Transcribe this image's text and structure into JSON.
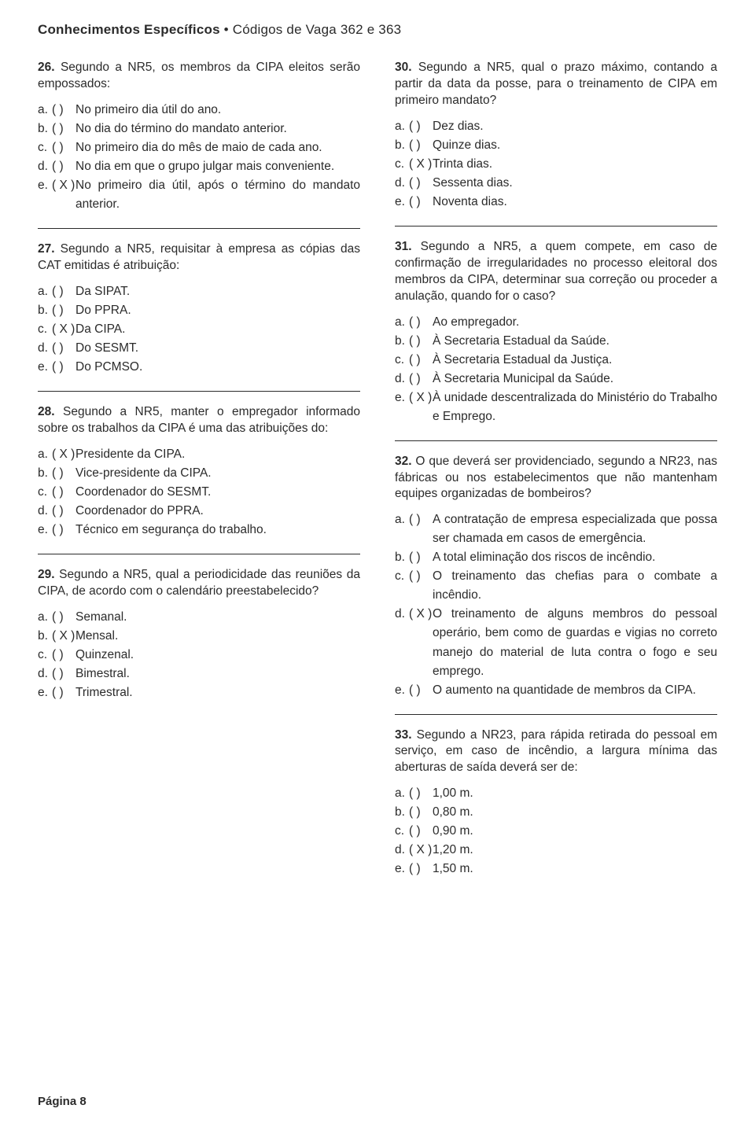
{
  "header": {
    "strong": "Conhecimentos Específicos",
    "light": " • Códigos de Vaga 362 e 363"
  },
  "footer": "Página 8",
  "left": [
    {
      "n": "26.",
      "text": " Segundo a NR5, os membros da CIPA eleitos serão empossados:",
      "opts": [
        {
          "l": "a.",
          "m": "(    )",
          "t": "No primeiro dia útil do ano."
        },
        {
          "l": "b.",
          "m": "(    )",
          "t": "No dia do término do mandato anterior."
        },
        {
          "l": "c.",
          "m": "(    )",
          "t": "No primeiro dia do mês de maio de cada ano."
        },
        {
          "l": "d.",
          "m": "(    )",
          "t": "No dia em que o grupo julgar mais conveniente."
        },
        {
          "l": "e.",
          "m": "( X )",
          "t": "No primeiro dia útil, após o término do mandato anterior."
        }
      ]
    },
    {
      "n": "27.",
      "text": " Segundo a NR5, requisitar à empresa as cópias das CAT emitidas é atribuição:",
      "opts": [
        {
          "l": "a.",
          "m": "(    )",
          "t": "Da SIPAT."
        },
        {
          "l": "b.",
          "m": "(    )",
          "t": "Do PPRA."
        },
        {
          "l": "c.",
          "m": "( X )",
          "t": "Da CIPA."
        },
        {
          "l": "d.",
          "m": "(    )",
          "t": "Do SESMT."
        },
        {
          "l": "e.",
          "m": "(    )",
          "t": "Do PCMSO."
        }
      ]
    },
    {
      "n": "28.",
      "text": " Segundo a NR5, manter o empregador informado sobre os trabalhos da CIPA é uma das atribuições do:",
      "opts": [
        {
          "l": "a.",
          "m": "( X )",
          "t": "Presidente da CIPA."
        },
        {
          "l": "b.",
          "m": "(    )",
          "t": "Vice-presidente da CIPA."
        },
        {
          "l": "c.",
          "m": "(    )",
          "t": "Coordenador do SESMT."
        },
        {
          "l": "d.",
          "m": "(    )",
          "t": "Coordenador do PPRA."
        },
        {
          "l": "e.",
          "m": "(    )",
          "t": "Técnico em segurança do trabalho."
        }
      ]
    },
    {
      "n": "29.",
      "text": " Segundo a NR5, qual a periodicidade das reuniões da CIPA, de acordo com o calendário preestabelecido?",
      "opts": [
        {
          "l": "a.",
          "m": "(    )",
          "t": "Semanal."
        },
        {
          "l": "b.",
          "m": "( X )",
          "t": "Mensal."
        },
        {
          "l": "c.",
          "m": "(    )",
          "t": "Quinzenal."
        },
        {
          "l": "d.",
          "m": "(    )",
          "t": "Bimestral."
        },
        {
          "l": "e.",
          "m": "(    )",
          "t": "Trimestral."
        }
      ]
    }
  ],
  "right": [
    {
      "n": "30.",
      "text": " Segundo a NR5, qual o prazo máximo, contando a partir da data da posse, para o treinamento de CIPA em primeiro mandato?",
      "opts": [
        {
          "l": "a.",
          "m": "(    )",
          "t": "Dez dias."
        },
        {
          "l": "b.",
          "m": "(    )",
          "t": "Quinze dias."
        },
        {
          "l": "c.",
          "m": "( X )",
          "t": "Trinta dias."
        },
        {
          "l": "d.",
          "m": "(    )",
          "t": "Sessenta dias."
        },
        {
          "l": "e.",
          "m": "(    )",
          "t": "Noventa dias."
        }
      ]
    },
    {
      "n": "31.",
      "text": " Segundo a NR5, a quem compete, em caso de confirmação de irregularidades no processo eleitoral dos membros da CIPA, determinar sua correção ou proceder a anulação, quando for o caso?",
      "opts": [
        {
          "l": "a.",
          "m": "(    )",
          "t": "Ao empregador."
        },
        {
          "l": "b.",
          "m": "(    )",
          "t": "À Secretaria Estadual da Saúde."
        },
        {
          "l": "c.",
          "m": "(    )",
          "t": "À Secretaria Estadual da Justiça."
        },
        {
          "l": "d.",
          "m": "(    )",
          "t": "À Secretaria Municipal da Saúde."
        },
        {
          "l": "e.",
          "m": "( X )",
          "t": "À unidade descentralizada do Ministério do Trabalho e Emprego."
        }
      ]
    },
    {
      "n": "32.",
      "text": " O que deverá ser providenciado, segundo a NR23, nas fábricas ou nos estabelecimentos que não mantenham equipes organizadas de bombeiros?",
      "opts": [
        {
          "l": "a.",
          "m": "(    )",
          "t": "A contratação de empresa especializada que possa ser chamada em casos de emergência."
        },
        {
          "l": "b.",
          "m": "(    )",
          "t": "A total eliminação dos riscos de incêndio."
        },
        {
          "l": "c.",
          "m": "(    )",
          "t": "O treinamento das chefias para o combate a incêndio."
        },
        {
          "l": "d.",
          "m": "( X )",
          "t": "O treinamento de alguns membros do pessoal operário, bem como de guardas e vigias no correto manejo do material de luta contra o fogo e seu emprego."
        },
        {
          "l": "e.",
          "m": "(    )",
          "t": "O aumento na quantidade de membros da CIPA."
        }
      ]
    },
    {
      "n": "33.",
      "text": " Segundo a NR23, para rápida retirada do pessoal em serviço, em caso de incêndio, a largura mínima das aberturas de saída deverá ser de:",
      "opts": [
        {
          "l": "a.",
          "m": "(    )",
          "t": "1,00 m."
        },
        {
          "l": "b.",
          "m": "(    )",
          "t": "0,80 m."
        },
        {
          "l": "c.",
          "m": "(    )",
          "t": "0,90 m."
        },
        {
          "l": "d.",
          "m": "( X )",
          "t": "1,20 m."
        },
        {
          "l": "e.",
          "m": "(    )",
          "t": "1,50 m."
        }
      ]
    }
  ]
}
